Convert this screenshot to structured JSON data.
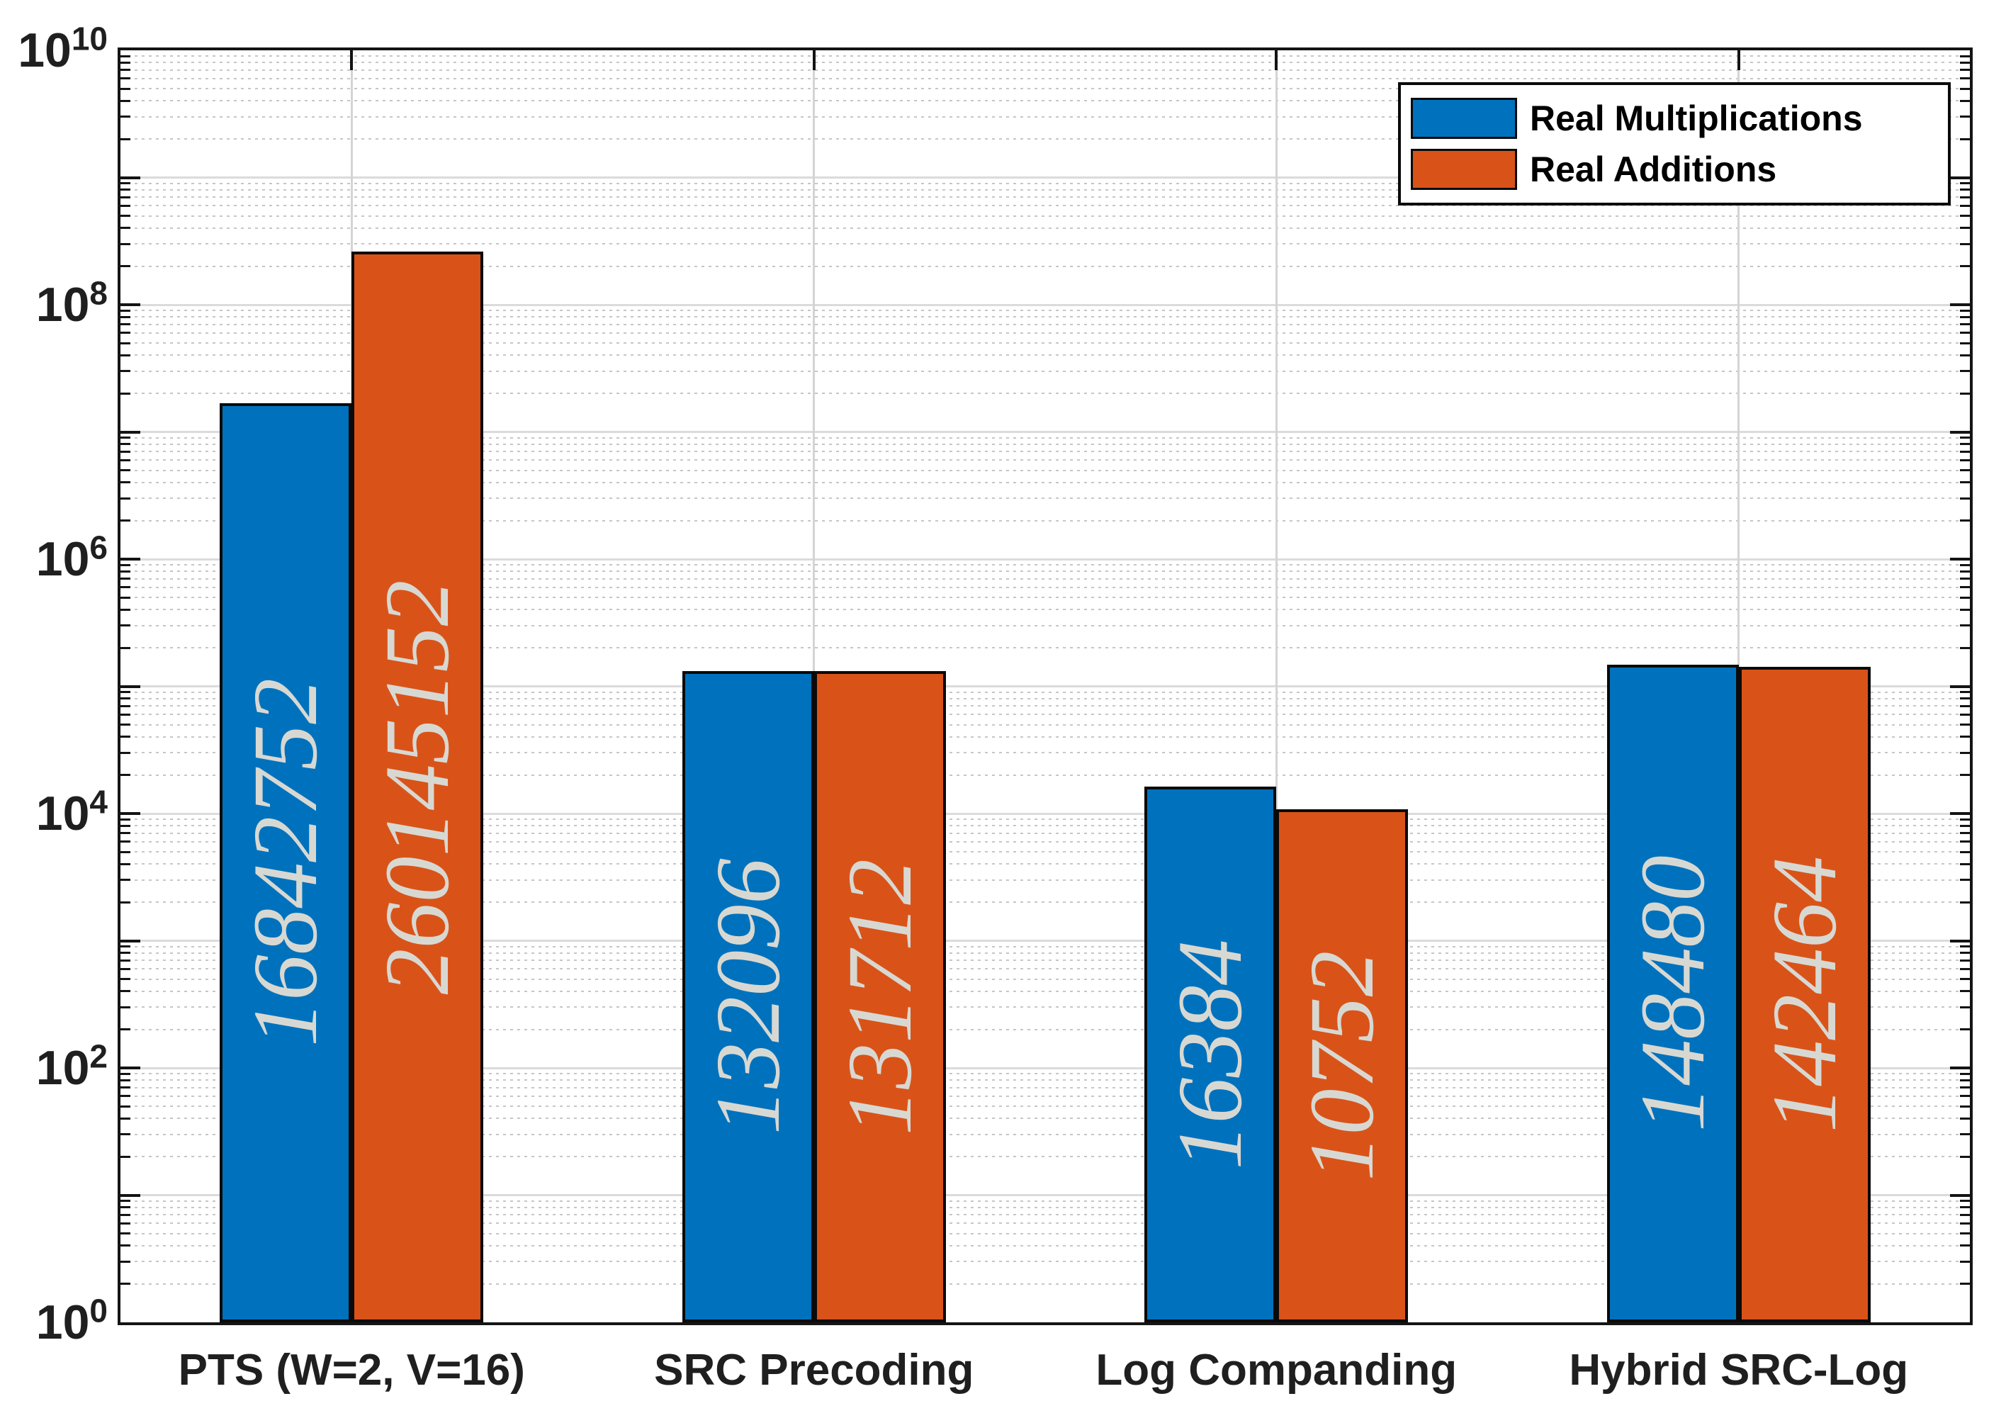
{
  "figure": {
    "background": "#FFFFFF"
  },
  "chart_data": {
    "type": "bar",
    "y_scale": "log10",
    "title": "",
    "xlabel": "",
    "ylabel": "",
    "categories": [
      "PTS (W=2, V=16)",
      "SRC Precoding",
      "Log Companding",
      "Hybrid SRC-Log"
    ],
    "series": [
      {
        "name": "Real Multiplications",
        "color": "#0072BD",
        "values": [
          16842752,
          132096,
          16384,
          148480
        ]
      },
      {
        "name": "Real Additions",
        "color": "#D95319",
        "values": [
          260145152,
          131712,
          10752,
          142464
        ]
      }
    ],
    "bar_value_labels": [
      [
        "16842752",
        "132096",
        "16384",
        "148480"
      ],
      [
        "260145152",
        "131712",
        "10752",
        "142464"
      ]
    ],
    "y_axis": {
      "base_label": "10",
      "min_exponent": 0,
      "max_exponent": 10,
      "labeled_exponents": [
        0,
        2,
        4,
        6,
        8,
        10
      ],
      "major_grid": "solid",
      "minor_grid": "dotted",
      "ylim": [
        1,
        10000000000
      ]
    },
    "legend": {
      "position": "top-right"
    },
    "colors": {
      "bar_edge": "#0A0A0A",
      "axis_line": "#141414",
      "tick_label": "#1F1F1F",
      "value_label": "#D8D8D2",
      "major_grid": "#DBDBDB",
      "minor_grid": "#C6C6C6",
      "legend_background": "#FFFFFF"
    }
  }
}
